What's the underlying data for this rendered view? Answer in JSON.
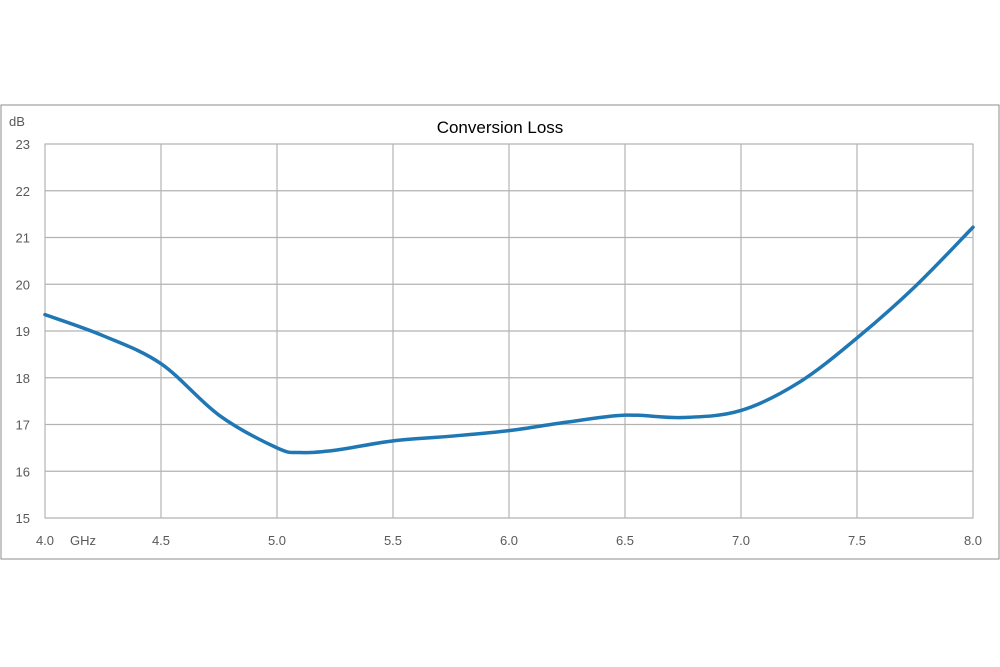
{
  "chart_data": {
    "type": "line",
    "title": "Conversion Loss",
    "y_unit": "dB",
    "x_unit": "GHz",
    "xlim": [
      4.0,
      8.0
    ],
    "ylim": [
      15,
      23
    ],
    "x_ticks": [
      "4.0",
      "4.5",
      "5.0",
      "5.5",
      "6.0",
      "6.5",
      "7.0",
      "7.5",
      "8.0"
    ],
    "y_ticks": [
      "15",
      "16",
      "17",
      "18",
      "19",
      "20",
      "21",
      "22",
      "23"
    ],
    "grid": true,
    "series": [
      {
        "color": "#1f77b4",
        "x": [
          4.0,
          4.25,
          4.5,
          4.75,
          5.0,
          5.1,
          5.25,
          5.5,
          5.75,
          6.0,
          6.25,
          6.5,
          6.75,
          7.0,
          7.25,
          7.5,
          7.75,
          8.0
        ],
        "values": [
          19.35,
          18.9,
          18.3,
          17.2,
          16.5,
          16.4,
          16.45,
          16.65,
          16.75,
          16.87,
          17.05,
          17.2,
          17.15,
          17.3,
          17.9,
          18.85,
          19.95,
          21.22
        ]
      }
    ]
  }
}
